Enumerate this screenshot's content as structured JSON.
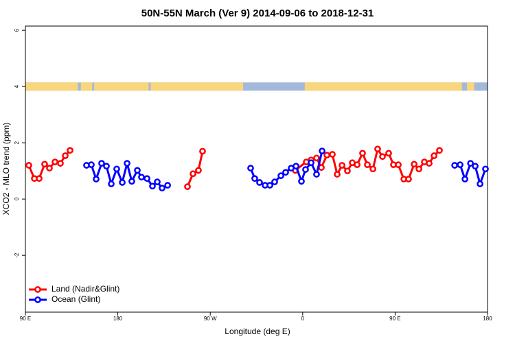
{
  "chart_data": {
    "type": "line",
    "title": "50N-55N March (Ver 9)   2014-09-06 to 2018-12-31",
    "x_label": "Longitude (deg E)",
    "y_label": "XCO2 - MLO trend (ppm)",
    "xlim": [
      90,
      540
    ],
    "xticks": [
      {
        "value": 90,
        "label": "90 E"
      },
      180,
      {
        "value": 270,
        "label": "90 W"
      },
      {
        "value": 360,
        "label": "0"
      },
      {
        "value": 450,
        "label": "90 E"
      },
      {
        "value": 540,
        "label": "180"
      }
    ],
    "ylim": [
      -4.02,
      6.15
    ],
    "yticks": [
      -2,
      0,
      2,
      4,
      6
    ],
    "surface_band": {
      "y": 4,
      "ocean_color": "#a3b9dc",
      "land_color": "#f8d67c",
      "land_ranges": [
        [
          90,
          141
        ],
        [
          144,
          155
        ],
        [
          157,
          210
        ],
        [
          212,
          302
        ],
        [
          362,
          515
        ],
        [
          520,
          527
        ]
      ]
    },
    "series": [
      {
        "name": "Land (Nadir&Glint)",
        "color": "#ff0000",
        "x": [
          93.3,
          98.7,
          103.4,
          108.7,
          113.4,
          118.8,
          124.1,
          128.8,
          133.5,
          null,
          247.8,
          253.2,
          258.5,
          262.5,
          null,
          352.8,
          363.5,
          368.2,
          373.5,
          378.2,
          383.6,
          388.9,
          393.6,
          398.3,
          403.6,
          408.3,
          413.0,
          418.3,
          423.0,
          428.4,
          433.0,
          437.7,
          443.7,
          448.4,
          453.1,
          458.5,
          463.1,
          468.5,
          473.2,
          478.5,
          483.2,
          487.9,
          493.2
        ],
        "values": [
          1.2,
          0.73,
          0.73,
          1.24,
          1.1,
          1.32,
          1.27,
          1.54,
          1.73,
          null,
          0.44,
          0.9,
          1.02,
          1.7,
          null,
          1.02,
          1.32,
          1.39,
          1.46,
          1.12,
          1.56,
          1.59,
          0.88,
          1.2,
          1.0,
          1.29,
          1.22,
          1.63,
          1.22,
          1.07,
          1.78,
          1.51,
          1.63,
          1.22,
          1.22,
          0.71,
          0.71,
          1.24,
          1.07,
          1.32,
          1.27,
          1.54,
          1.73
        ]
      },
      {
        "name": "Ocean (Glint)",
        "color": "#0000ff",
        "x": [
          149.5,
          154.2,
          158.9,
          164.2,
          168.9,
          173.6,
          178.9,
          184.3,
          189.0,
          193.6,
          199.0,
          203.0,
          208.4,
          213.7,
          218.4,
          223.1,
          228.5,
          null,
          309.3,
          313.3,
          318.0,
          323.4,
          328.1,
          332.7,
          338.8,
          343.4,
          348.8,
          353.5,
          358.8,
          362.8,
          368.2,
          373.5,
          378.9,
          null,
          508.0,
          513.3,
          518.0,
          523.4,
          528.0,
          532.7,
          538.0
        ],
        "values": [
          1.2,
          1.22,
          0.71,
          1.27,
          1.17,
          0.54,
          1.07,
          0.59,
          1.27,
          0.63,
          1.02,
          0.78,
          0.73,
          0.46,
          0.61,
          0.39,
          0.49,
          null,
          1.1,
          0.73,
          0.59,
          0.49,
          0.49,
          0.61,
          0.83,
          0.95,
          1.1,
          1.17,
          0.63,
          1.05,
          1.29,
          0.88,
          1.71,
          null,
          1.2,
          1.22,
          0.71,
          1.27,
          1.17,
          0.54,
          1.07
        ]
      }
    ]
  }
}
